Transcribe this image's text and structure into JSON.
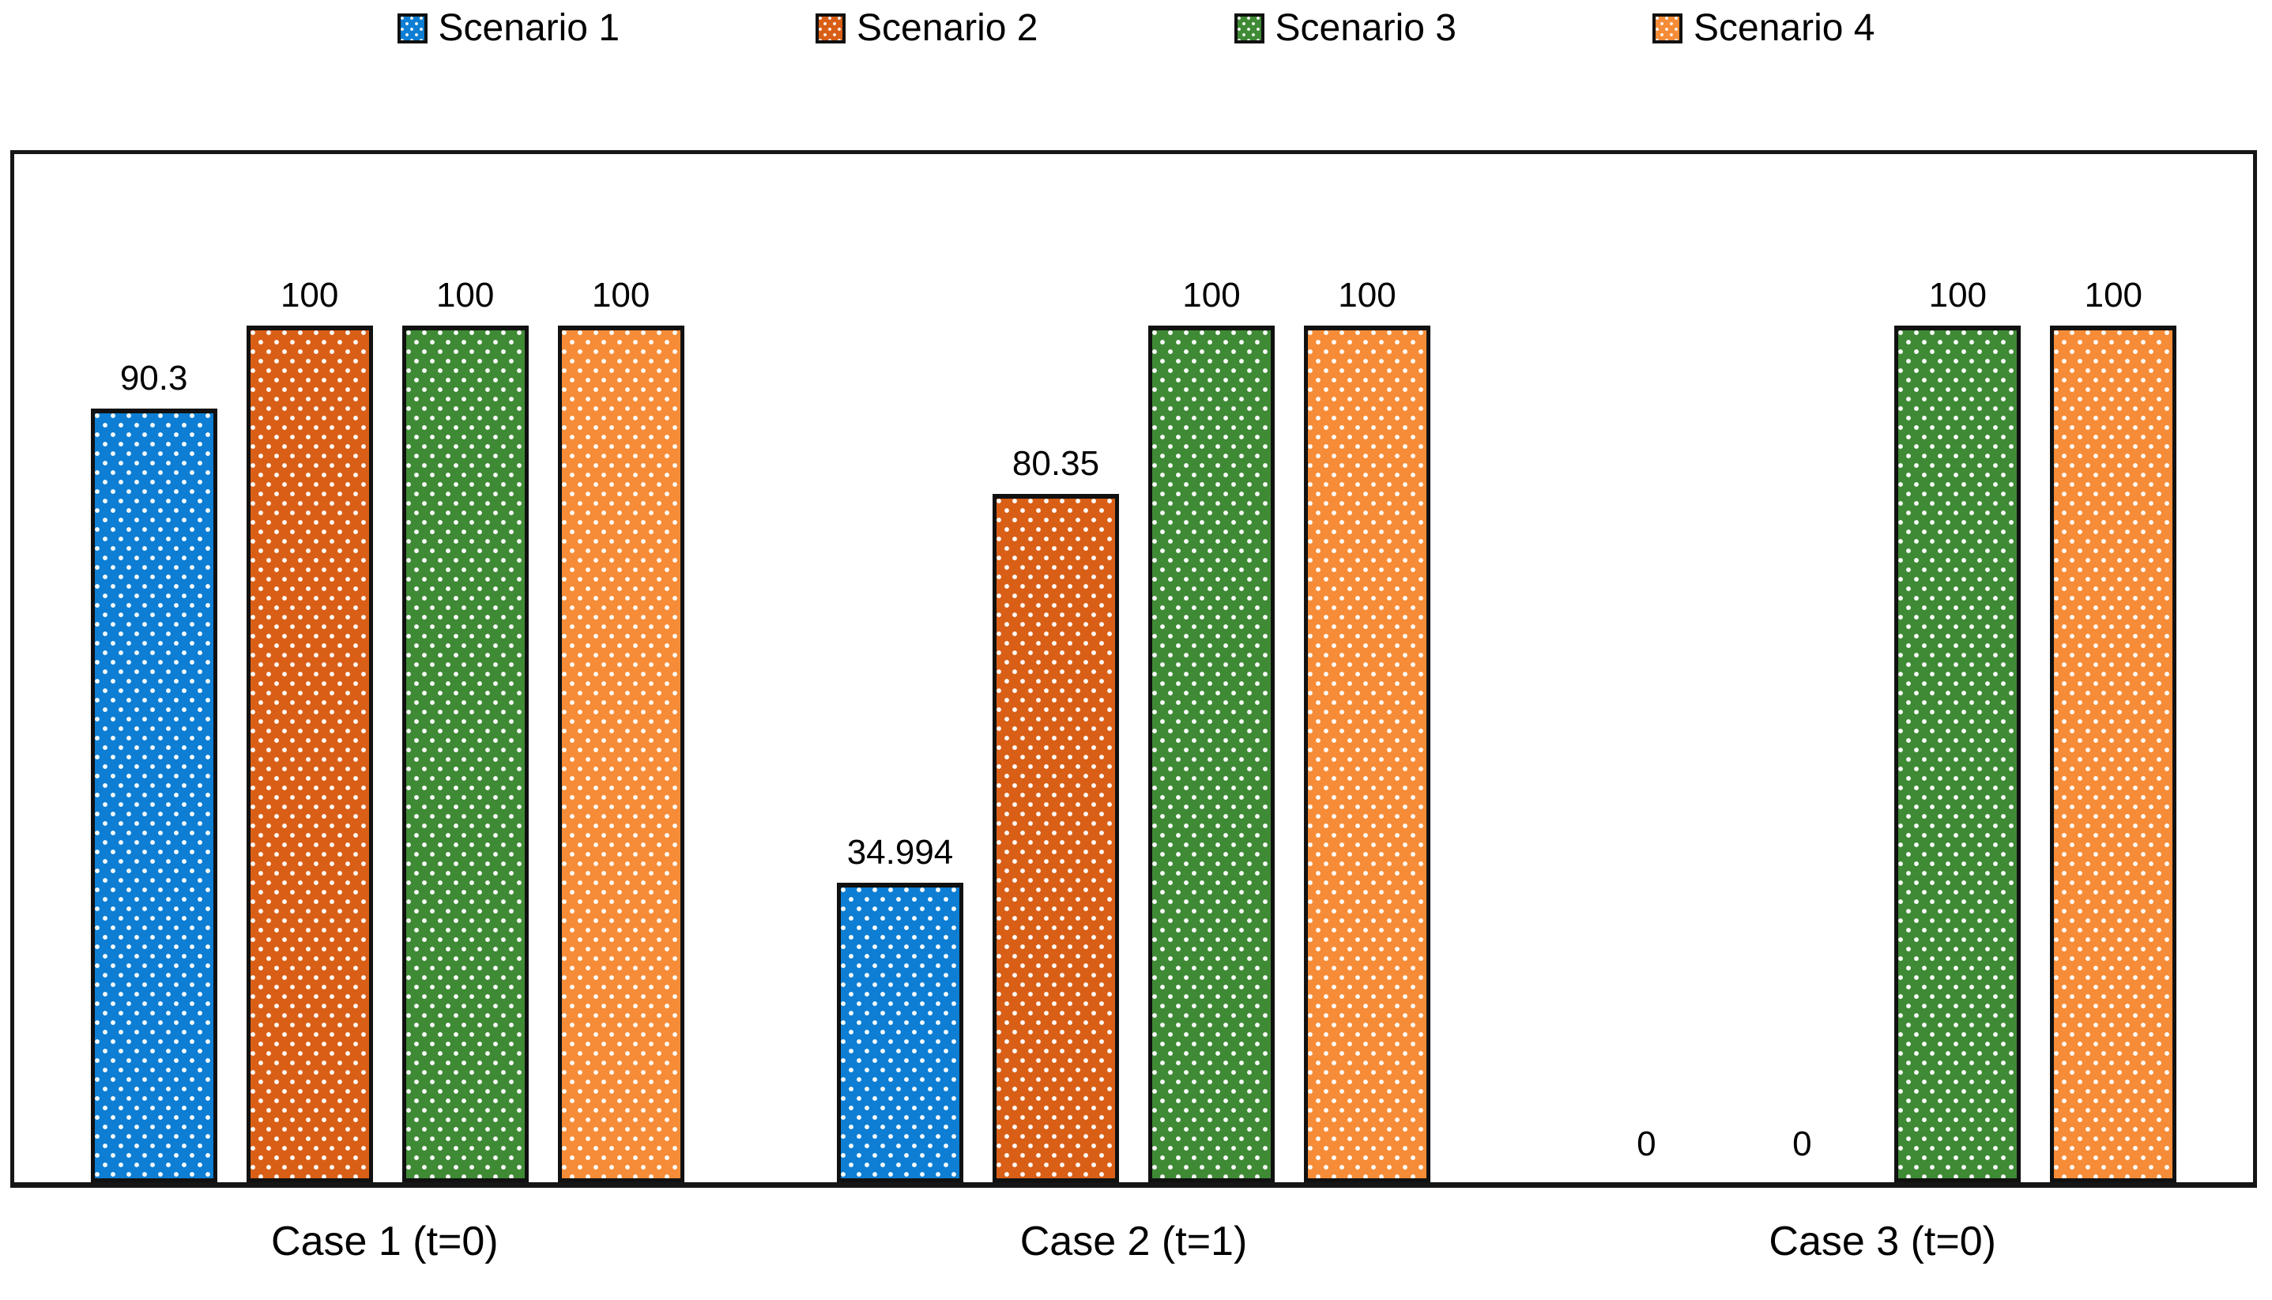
{
  "chart_data": {
    "type": "bar",
    "title": "",
    "xlabel": "",
    "ylabel": "",
    "categories": [
      "Case 1 (t=0)",
      "Case 2 (t=1)",
      "Case 3 (t=0)"
    ],
    "series": [
      {
        "name": "Scenario 1",
        "color": "#0d7ed3",
        "values": [
          90.3,
          34.994,
          0
        ],
        "labels": [
          "90.3",
          "34.994",
          "0"
        ]
      },
      {
        "name": "Scenario 2",
        "color": "#d95f17",
        "values": [
          100,
          80.35,
          0
        ],
        "labels": [
          "100",
          "80.35",
          "0"
        ]
      },
      {
        "name": "Scenario 3",
        "color": "#3f8a35",
        "values": [
          100,
          100,
          100
        ],
        "labels": [
          "100",
          "100",
          "100"
        ]
      },
      {
        "name": "Scenario 4",
        "color": "#f68c37",
        "values": [
          100,
          100,
          100
        ],
        "labels": [
          "100",
          "100",
          "100"
        ]
      }
    ],
    "ylim": [
      0,
      120
    ],
    "y_axis_visible": false,
    "grid": false,
    "legend_position": "top",
    "bar_fill_pattern": "white-dots",
    "bar_border_color": "#111111",
    "plot_border_color": "#161616",
    "zero_value_bars_drawn": false
  }
}
